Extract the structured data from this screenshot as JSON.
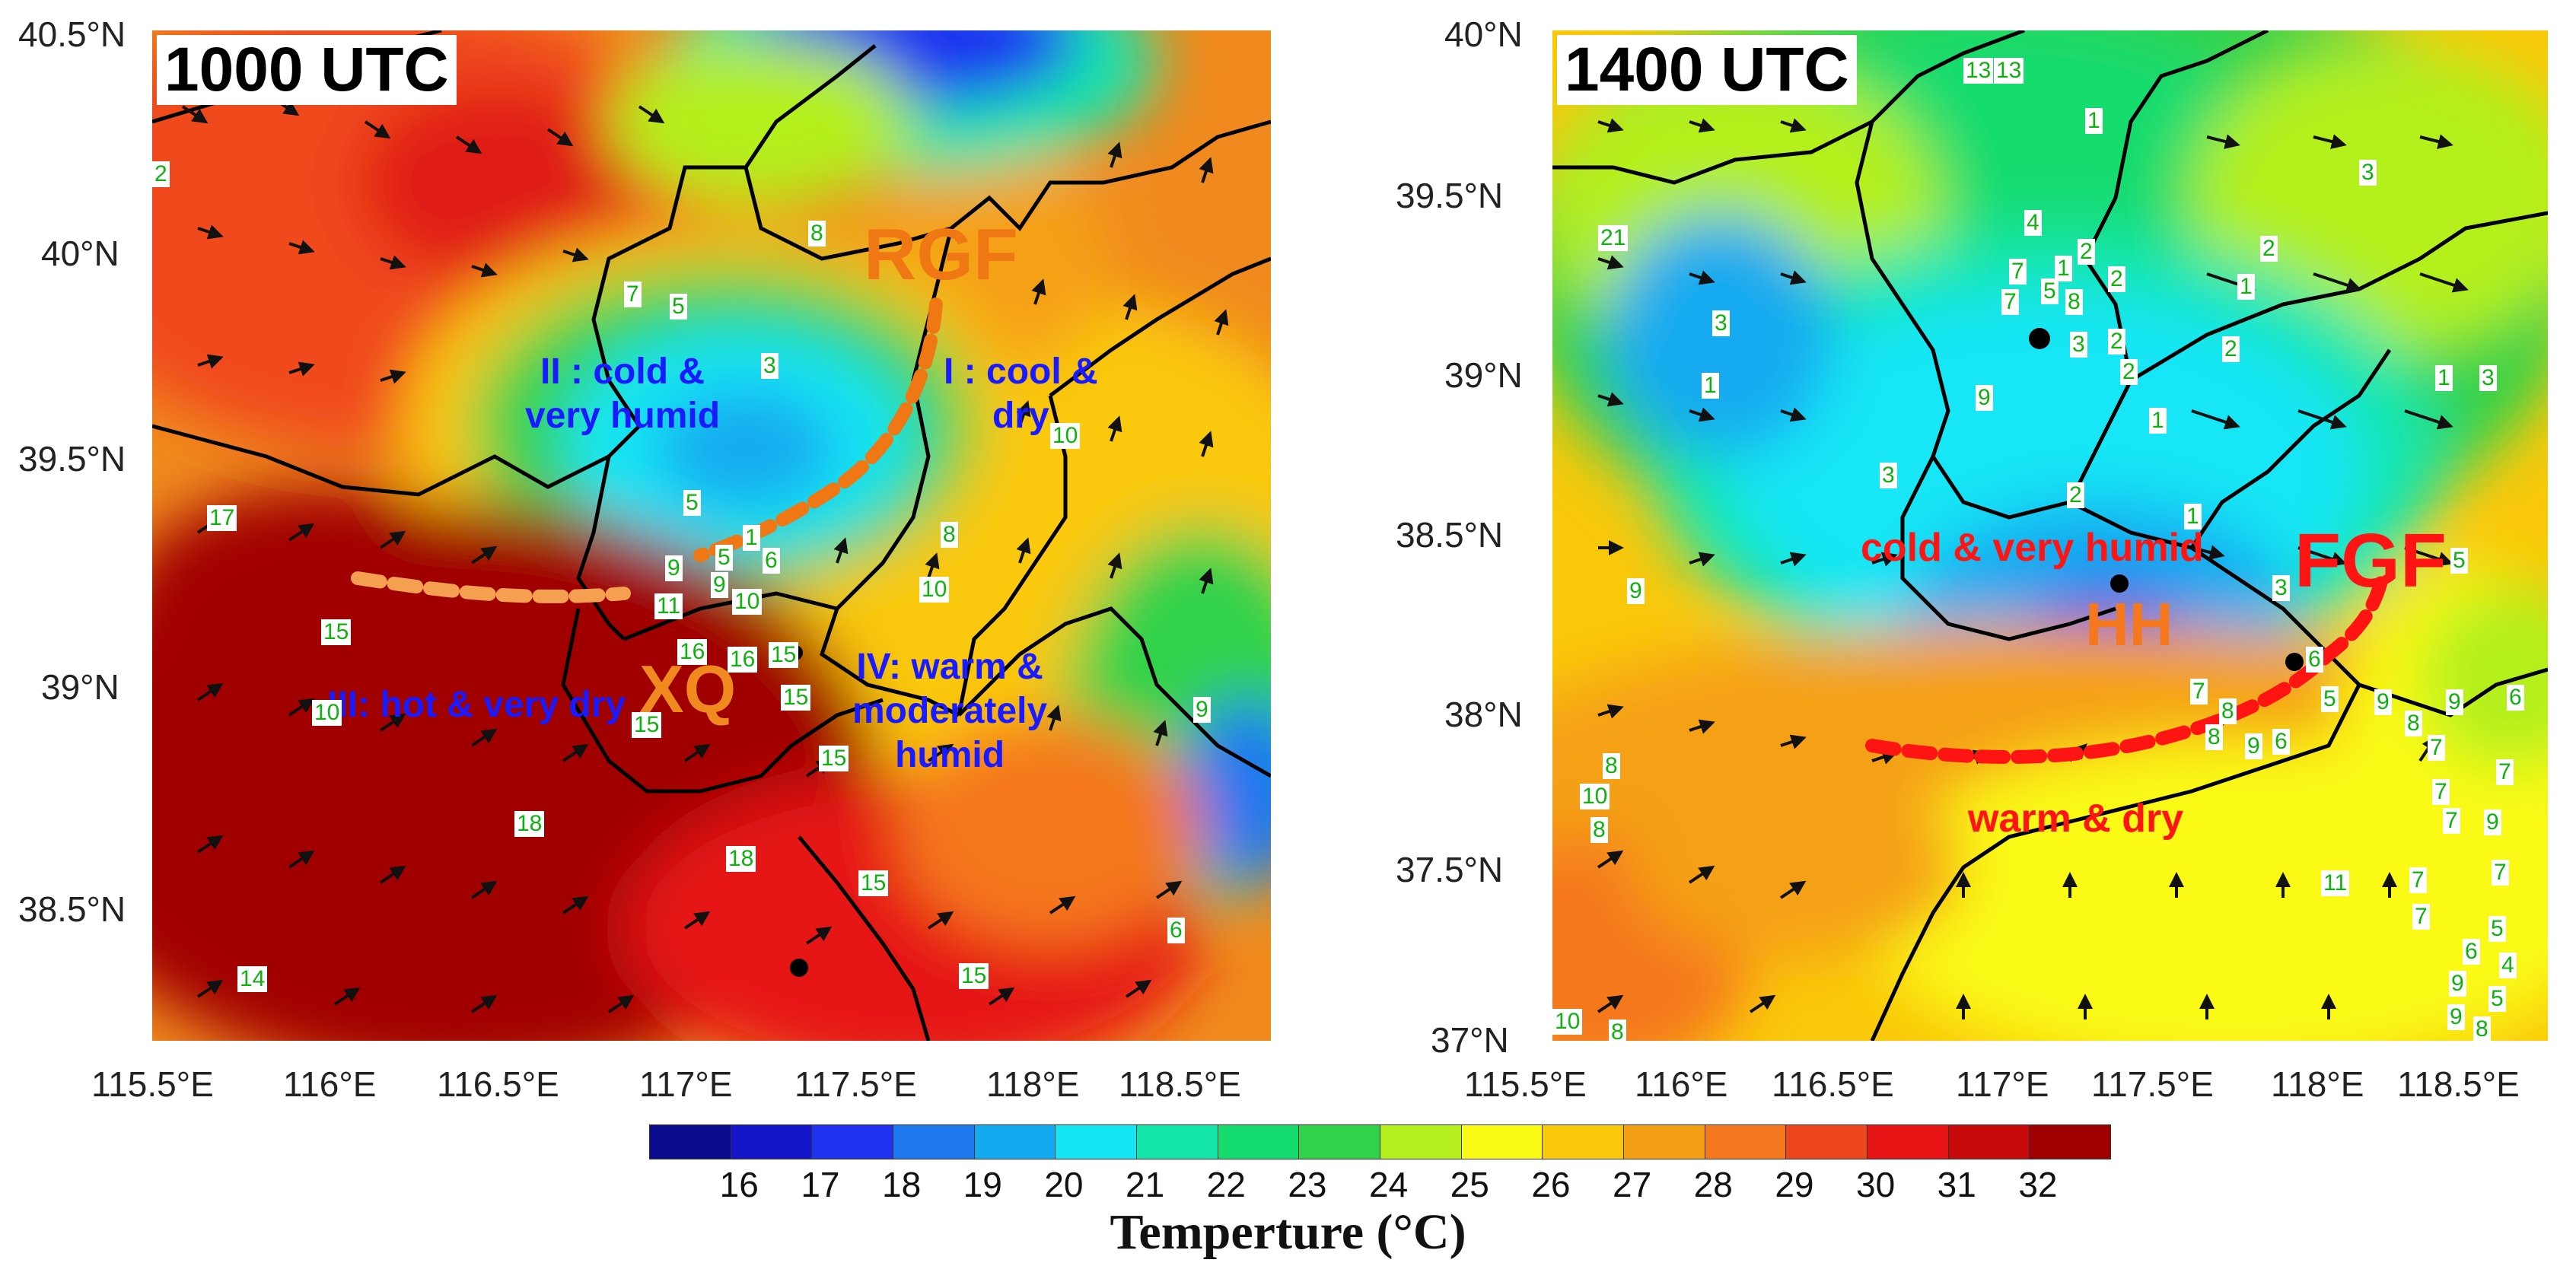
{
  "panels": [
    {
      "title": "1000 UTC",
      "lat_ticks": [
        "40.5°N",
        "40°N",
        "39.5°N",
        "39°N",
        "38.5°N"
      ],
      "lon_ticks": [
        "115.5°E",
        "116°E",
        "116.5°E",
        "117°E",
        "117.5°E",
        "118°E",
        "118.5°E"
      ],
      "regions": [
        "II : cold &",
        "very humid",
        "I : cool &",
        "dry",
        "III: hot & very dry",
        "IV: warm &",
        "moderately",
        "humid"
      ],
      "front_labels": [
        "RGF",
        "XQ"
      ],
      "stations": [
        "2",
        "8",
        "7",
        "5",
        "3",
        "10",
        "17",
        "5",
        "1",
        "6",
        "8",
        "9",
        "5",
        "11",
        "9",
        "10",
        "10",
        "15",
        "16",
        "16",
        "15",
        "15",
        "10",
        "15",
        "15",
        "18",
        "18",
        "15",
        "9",
        "6",
        "14",
        "15"
      ]
    },
    {
      "title": "1400 UTC",
      "lat_ticks": [
        "40°N",
        "39.5°N",
        "39°N",
        "38.5°N",
        "38°N",
        "37.5°N",
        "37°N"
      ],
      "lon_ticks": [
        "115.5°E",
        "116°E",
        "116.5°E",
        "117°E",
        "117.5°E",
        "118°E",
        "118.5°E"
      ],
      "regions": [
        "cold & very humid",
        "warm & dry"
      ],
      "front_labels": [
        "FGF",
        "HH"
      ],
      "stations": [
        "13",
        "13",
        "1",
        "3",
        "21",
        "4",
        "2",
        "2",
        "7",
        "1",
        "1",
        "7",
        "5",
        "8",
        "2",
        "3",
        "3",
        "2",
        "2",
        "1",
        "9",
        "2",
        "1",
        "1",
        "3",
        "3",
        "2",
        "1",
        "5",
        "9",
        "3",
        "6",
        "7",
        "8",
        "5",
        "9",
        "9",
        "6",
        "8",
        "9",
        "6",
        "8",
        "8",
        "7",
        "10",
        "8",
        "7",
        "7",
        "7",
        "9",
        "11",
        "7",
        "7",
        "5",
        "7",
        "6",
        "4",
        "9",
        "5",
        "10",
        "8",
        "9",
        "8"
      ]
    }
  ],
  "colorbar": {
    "title": "Temperture (°C)",
    "ticks": [
      "16",
      "17",
      "18",
      "19",
      "20",
      "21",
      "22",
      "23",
      "24",
      "25",
      "26",
      "27",
      "28",
      "29",
      "30",
      "31",
      "32"
    ],
    "colors": [
      "#0a0a8c",
      "#1414c8",
      "#1e32f0",
      "#1e78f0",
      "#14aaf0",
      "#14e6f5",
      "#14e6aa",
      "#14dc6e",
      "#32d24b",
      "#b4f01e",
      "#fafa14",
      "#fac80a",
      "#f5a014",
      "#f5781e",
      "#f0461e",
      "#e61414",
      "#c80a0a",
      "#a00000"
    ]
  }
}
